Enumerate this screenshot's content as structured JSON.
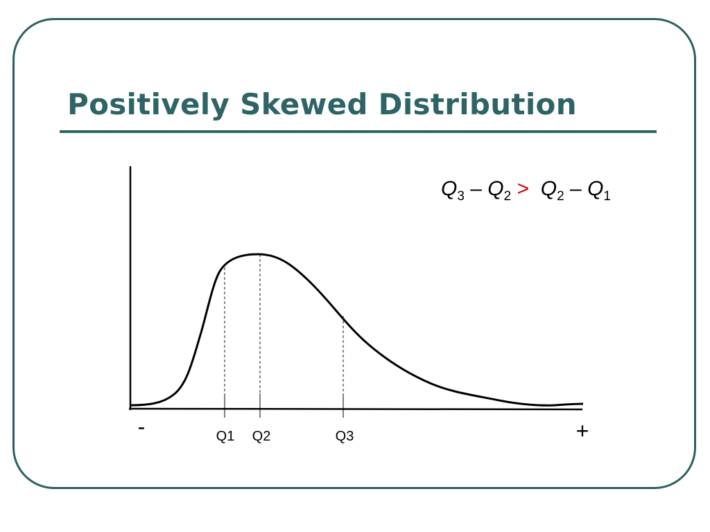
{
  "title": "Positively Skewed Distribution",
  "formula": {
    "left_term_a": "Q",
    "left_sub_a": "3",
    "minus_1": "–",
    "left_term_b": "Q",
    "left_sub_b": "2",
    "comparator": ">",
    "right_term_a": "Q",
    "right_sub_a": "2",
    "minus_2": "–",
    "right_term_b": "Q",
    "right_sub_b": "1"
  },
  "axis": {
    "negative_label": "-",
    "positive_label": "+"
  },
  "quartiles": [
    {
      "label": "Q1"
    },
    {
      "label": "Q2"
    },
    {
      "label": "Q3"
    }
  ],
  "colors": {
    "title": "#2e6466",
    "frame": "#2e5e5f",
    "comparator": "#d10000",
    "curve": "#000000"
  }
}
